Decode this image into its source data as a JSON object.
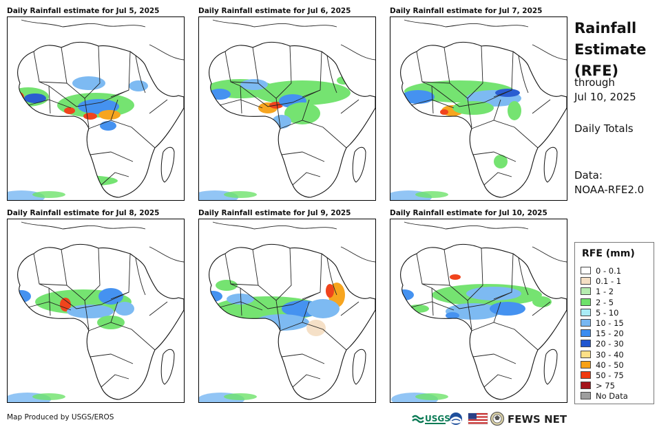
{
  "panels": [
    {
      "title": "Daily Rainfall estimate for Jul 5, 2025"
    },
    {
      "title": "Daily Rainfall estimate for Jul 6, 2025"
    },
    {
      "title": "Daily Rainfall estimate for Jul 7, 2025"
    },
    {
      "title": "Daily Rainfall estimate for Jul 8, 2025"
    },
    {
      "title": "Daily Rainfall estimate for Jul 9, 2025"
    },
    {
      "title": "Daily Rainfall estimate for Jul 10, 2025"
    }
  ],
  "sidebar": {
    "title_line1": "Rainfall",
    "title_line2": "Estimate",
    "title_line3": "(RFE)",
    "through": "through",
    "date": "Jul 10, 2025",
    "totals": "Daily Totals",
    "data_label": "Data:",
    "data_source": "NOAA-RFE2.0"
  },
  "legend": {
    "title": "RFE (mm)",
    "items": [
      {
        "label": "0 - 0.1",
        "color": "#ffffff"
      },
      {
        "label": "0.1 - 1",
        "color": "#f5dfc4"
      },
      {
        "label": "1 - 2",
        "color": "#b6ecb0"
      },
      {
        "label": "2 - 5",
        "color": "#6ee26a"
      },
      {
        "label": "5 - 10",
        "color": "#a9ecf6"
      },
      {
        "label": "10 - 15",
        "color": "#77b7f2"
      },
      {
        "label": "15 - 20",
        "color": "#3c8df0"
      },
      {
        "label": "20 - 30",
        "color": "#1f55cf"
      },
      {
        "label": "30 - 40",
        "color": "#fde087"
      },
      {
        "label": "40 - 50",
        "color": "#f7a114"
      },
      {
        "label": "50 - 75",
        "color": "#f03a10"
      },
      {
        "label": "> 75",
        "color": "#a4141a"
      },
      {
        "label": "No Data",
        "color": "#9e9e9e"
      }
    ]
  },
  "footer": {
    "credit": "Map Produced by USGS/EROS"
  },
  "logos": {
    "usgs": "USGS",
    "fewsnet": "FEWS NET"
  }
}
